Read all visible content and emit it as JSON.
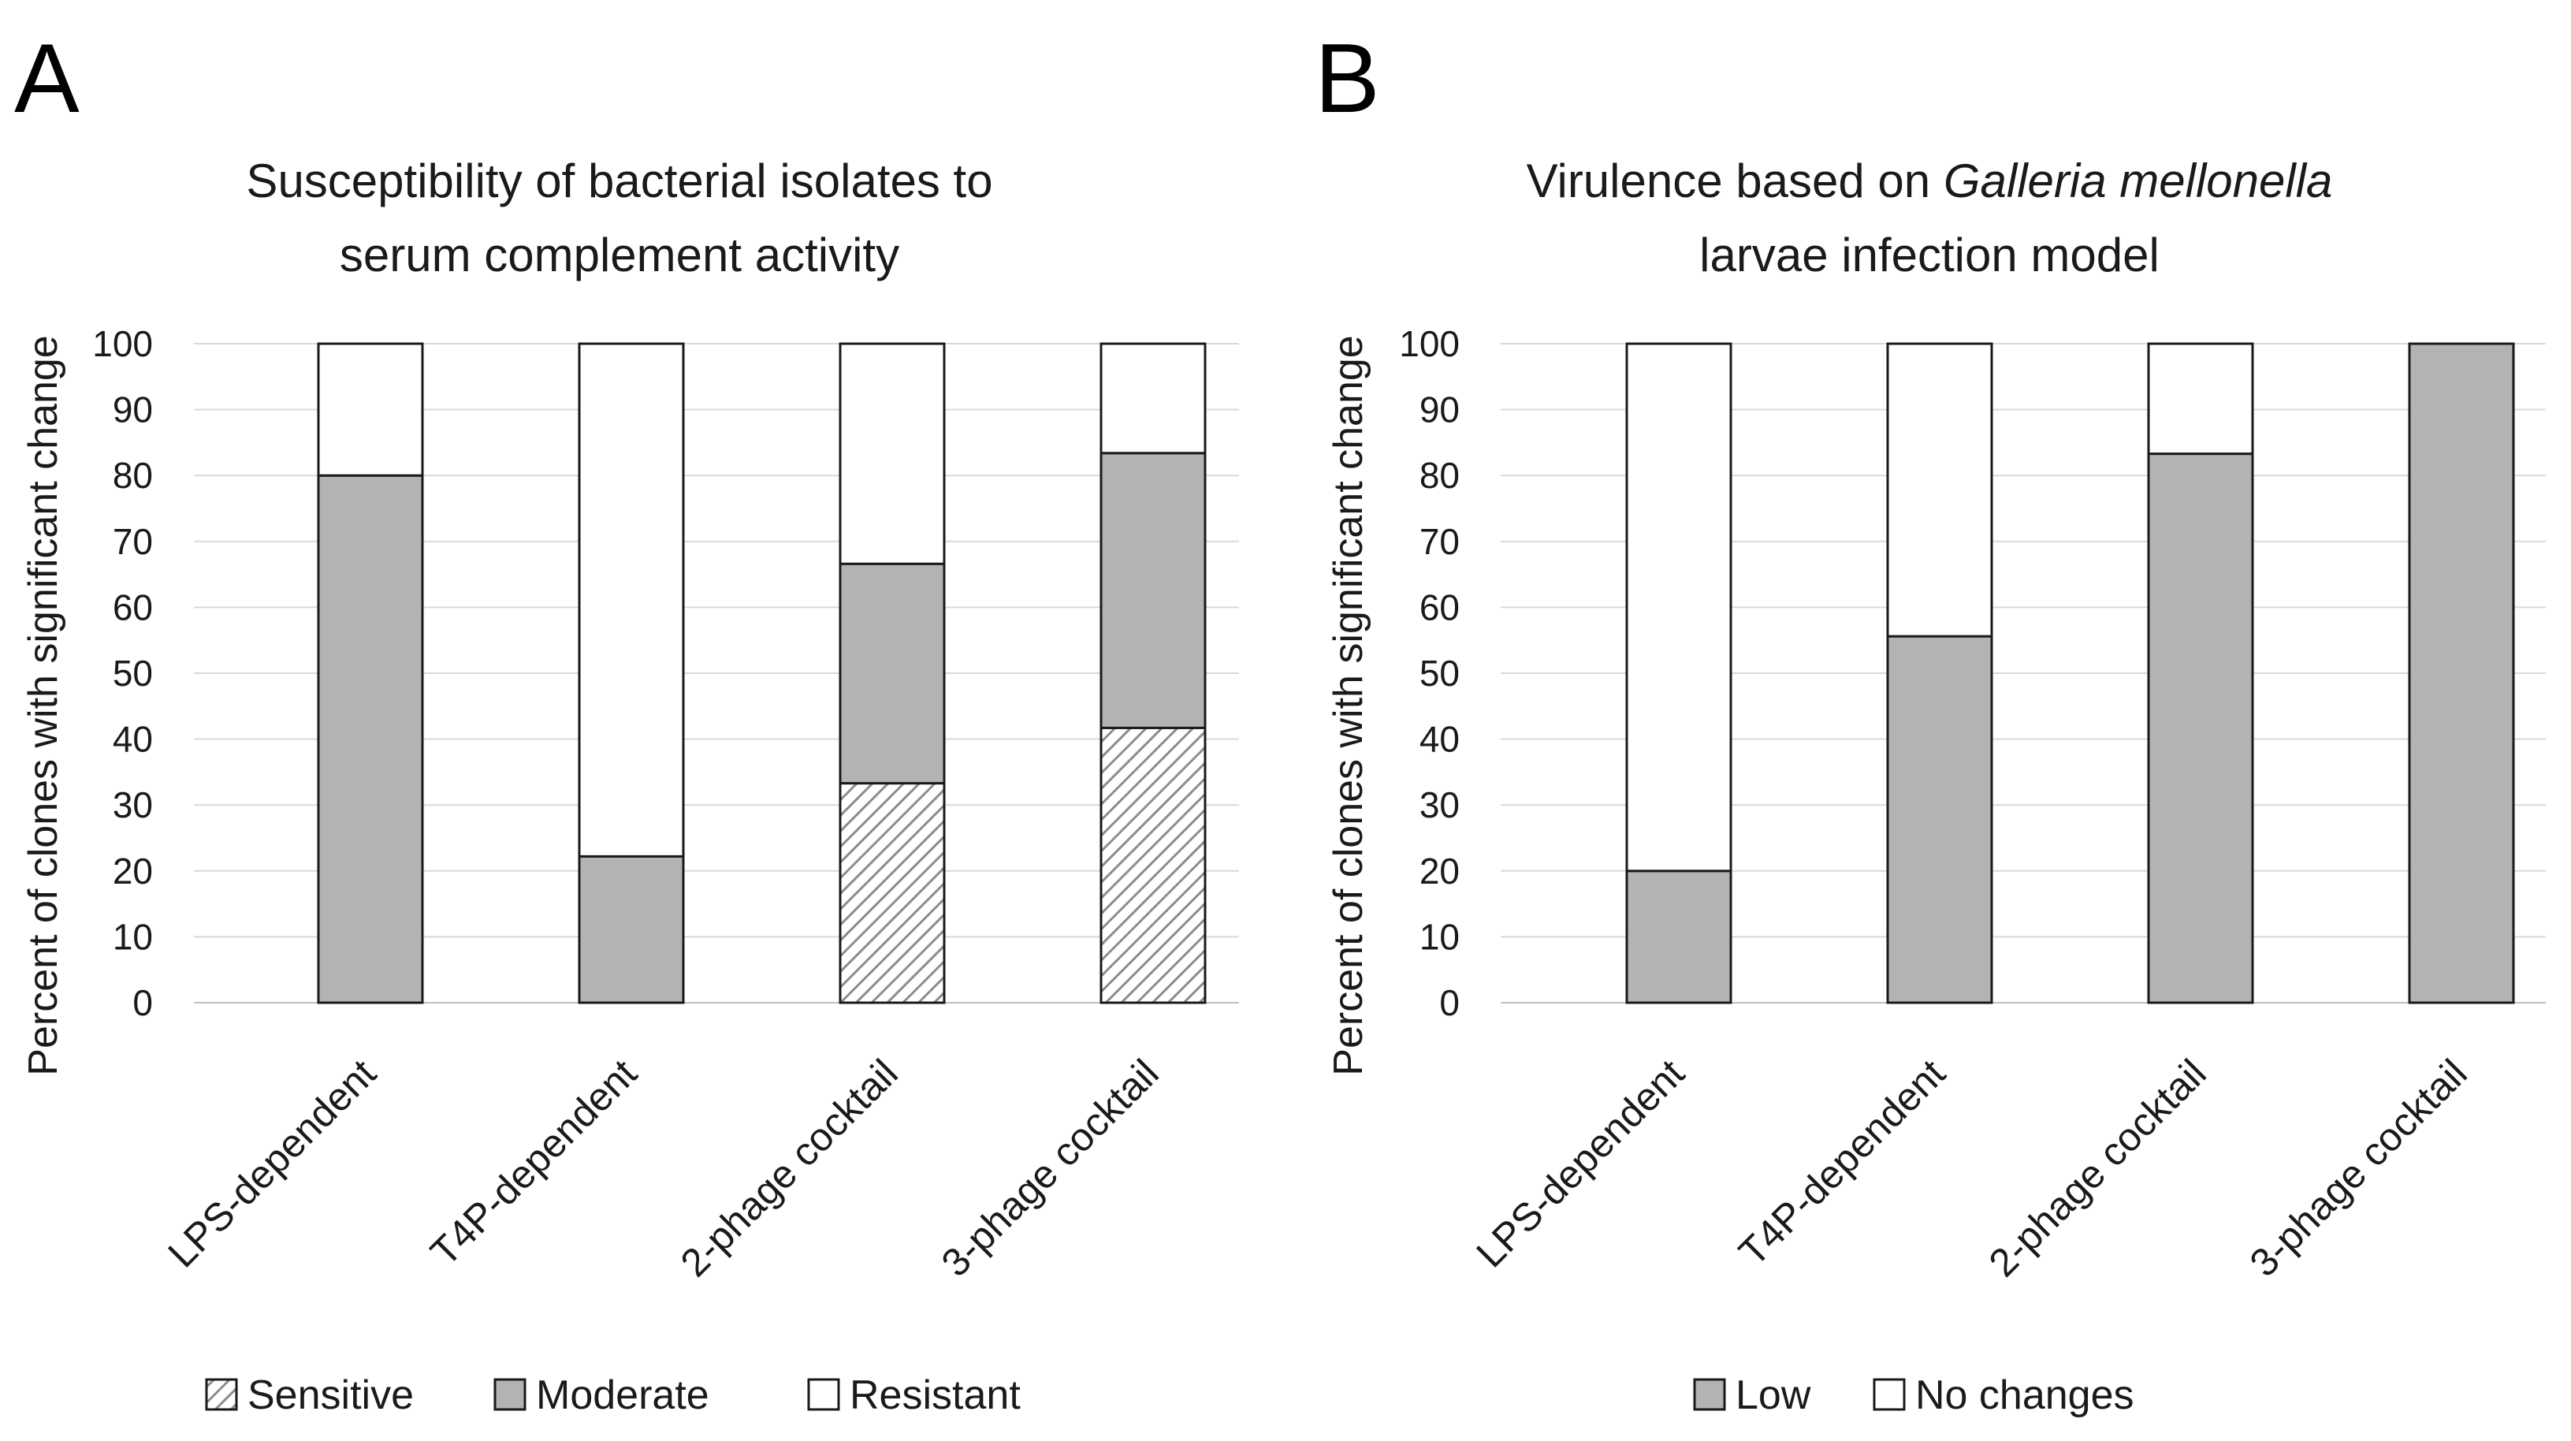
{
  "chart_data": [
    {
      "panel": "A",
      "type": "stacked-bar",
      "title": [
        "Susceptibility of bacterial isolates to",
        "serum complement activity"
      ],
      "ylabel": "Percent of clones with significant change",
      "ylim": [
        0,
        100
      ],
      "yticks": [
        0,
        10,
        20,
        30,
        40,
        50,
        60,
        70,
        80,
        90,
        100
      ],
      "categories": [
        "LPS-dependent",
        "T4P-dependent",
        "2-phage cocktail",
        "3-phage cocktail"
      ],
      "series": [
        {
          "name": "Sensitive",
          "pattern": "hatch",
          "color": "#a6a6a6",
          "values": [
            0,
            0,
            33.3,
            41.7
          ]
        },
        {
          "name": "Moderate",
          "pattern": "solid",
          "color": "#b3b3b3",
          "values": [
            80,
            22.2,
            33.3,
            41.7
          ]
        },
        {
          "name": "Resistant",
          "pattern": "solid",
          "color": "#ffffff",
          "values": [
            20,
            77.8,
            33.4,
            16.6
          ]
        }
      ],
      "legend_position": "bottom"
    },
    {
      "panel": "B",
      "type": "stacked-bar",
      "title": [
        "Virulence based on ",
        "Galleria mellonella",
        "larvae infection model"
      ],
      "ylabel": "Percent of clones with significant change",
      "ylim": [
        0,
        100
      ],
      "yticks": [
        0,
        10,
        20,
        30,
        40,
        50,
        60,
        70,
        80,
        90,
        100
      ],
      "categories": [
        "LPS-dependent",
        "T4P-dependent",
        "2-phage cocktail",
        "3-phage cocktail"
      ],
      "series": [
        {
          "name": "Low",
          "pattern": "solid",
          "color": "#b3b3b3",
          "values": [
            20,
            55.6,
            83.3,
            100
          ]
        },
        {
          "name": "No  changes",
          "pattern": "solid",
          "color": "#ffffff",
          "values": [
            80,
            44.4,
            16.7,
            0
          ]
        }
      ],
      "legend_position": "bottom"
    }
  ]
}
